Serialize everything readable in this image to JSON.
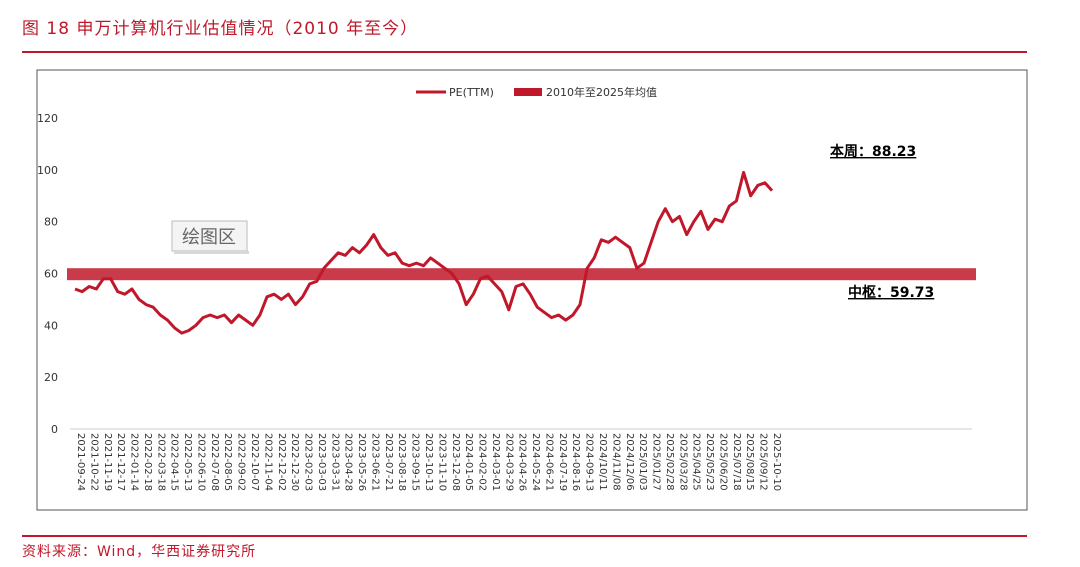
{
  "figure": {
    "title": "图 18  申万计算机行业估值情况（2010 年至今）",
    "source": "资料来源：Wind，华西证券研究所"
  },
  "chart_data": {
    "type": "line",
    "title": "",
    "xlabel": "",
    "ylabel": "",
    "ylim": [
      0,
      120
    ],
    "yticks": [
      0,
      20,
      40,
      60,
      80,
      100,
      120
    ],
    "grid": false,
    "legend_position": "top-center",
    "plot_area_label": "绘图区",
    "x_tick_labels": [
      "2021-09-24",
      "2021-10-22",
      "2021-11-19",
      "2021-12-17",
      "2022-01-14",
      "2022-02-18",
      "2022-03-18",
      "2022-04-15",
      "2022-05-13",
      "2022-06-10",
      "2022-07-08",
      "2022-08-05",
      "2022-09-02",
      "2022-10-07",
      "2022-11-04",
      "2022-12-02",
      "2022-12-30",
      "2023-02-03",
      "2023-03-03",
      "2023-03-31",
      "2023-04-28",
      "2023-05-26",
      "2023-06-21",
      "2023-07-21",
      "2023-08-18",
      "2023-09-15",
      "2023-10-13",
      "2023-11-10",
      "2023-12-08",
      "2024-01-05",
      "2024-02-02",
      "2024-03-01",
      "2024-03-29",
      "2024-04-26",
      "2024-05-24",
      "2024-06-21",
      "2024-07-19",
      "2024-08-16",
      "2024-09-13",
      "2024/10/11",
      "2024/11/08",
      "2024/12/06",
      "2025/01/03",
      "2025/01/27",
      "2025/02/28",
      "2025/03/28",
      "2025/04/25",
      "2025/05/23",
      "2025/06/20",
      "2025/07/18",
      "2025/08/15",
      "2025/09/12",
      "2025-10-10"
    ],
    "series": [
      {
        "name": "PE(TTM)",
        "color": "#c0182a",
        "values": [
          54,
          53,
          55,
          54,
          58,
          58,
          53,
          52,
          54,
          50,
          48,
          47,
          44,
          42,
          39,
          37,
          38,
          40,
          43,
          44,
          43,
          44,
          41,
          44,
          42,
          40,
          44,
          51,
          52,
          50,
          52,
          48,
          51,
          56,
          57,
          62,
          65,
          68,
          67,
          70,
          68,
          71,
          75,
          70,
          67,
          68,
          64,
          63,
          64,
          63,
          66,
          64,
          62,
          60,
          56,
          48,
          52,
          58,
          59,
          56,
          53,
          46,
          55,
          56,
          52,
          47,
          45,
          43,
          44,
          42,
          44,
          48,
          62,
          66,
          73,
          72,
          74,
          72,
          70,
          62,
          64,
          72,
          80,
          85,
          80,
          82,
          75,
          80,
          84,
          77,
          81,
          80,
          86,
          88,
          99,
          90,
          94,
          95,
          92
        ],
        "x_range": [
          "2021-09-24",
          "2025-10-10"
        ]
      },
      {
        "name": "2010年至2025年均值",
        "color": "#c0182a",
        "constant_value": 59.73
      }
    ],
    "annotations": [
      {
        "label": "本周：",
        "value": "88.23",
        "value_num": 88.23
      },
      {
        "label": "中枢：",
        "value": "59.73",
        "value_num": 59.73
      }
    ]
  }
}
